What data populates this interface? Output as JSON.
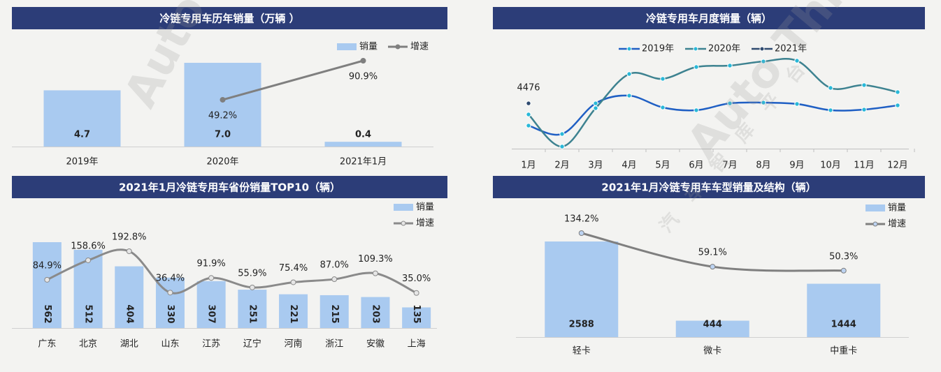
{
  "watermark": [
    "Auto Thinker",
    "汽车智库平台"
  ],
  "chart_data": [
    {
      "type": "combo",
      "title": "冷链专用车历年销量（万辆 ）",
      "categories": [
        "2019年",
        "2020年",
        "2021年1月"
      ],
      "series": [
        {
          "name": "销量",
          "type": "bar",
          "color": "#a9caf0",
          "values": [
            4.7,
            7.0,
            0.4
          ],
          "value_labels": [
            "4.7",
            "7.0",
            "0.4"
          ]
        },
        {
          "name": "增速",
          "type": "line",
          "axis": "y2",
          "color": "#7f7f7f",
          "marker_color": "#7f7f7f",
          "values": [
            null,
            49.2,
            90.9
          ],
          "value_labels": [
            null,
            "49.2%",
            "90.9%"
          ]
        }
      ],
      "legend": "top-right"
    },
    {
      "type": "line",
      "title": "冷链专用车月度销量（辆）",
      "categories": [
        "1月",
        "2月",
        "3月",
        "4月",
        "5月",
        "6月",
        "7月",
        "8月",
        "9月",
        "10月",
        "11月",
        "12月"
      ],
      "series": [
        {
          "name": "2019年",
          "color": "#1f5fc4",
          "values": [
            2280,
            1450,
            4480,
            5240,
            4070,
            3800,
            4480,
            4550,
            4420,
            3800,
            3860,
            4280
          ]
        },
        {
          "name": "2020年",
          "color": "#3d8290",
          "values": [
            3380,
            210,
            4000,
            7380,
            6900,
            8070,
            8210,
            8620,
            8690,
            6000,
            6280,
            5590
          ]
        },
        {
          "name": "2021年",
          "color": "#2f4a6f",
          "values": [
            4476,
            null,
            null,
            null,
            null,
            null,
            null,
            null,
            null,
            null,
            null,
            null
          ],
          "labels": true
        }
      ],
      "marker_color": "#29b8d8",
      "legend": "top"
    },
    {
      "type": "combo",
      "title": "2021年1月冷链专用车省份销量TOP10（辆）",
      "categories": [
        "广东",
        "北京",
        "湖北",
        "山东",
        "江苏",
        "辽宁",
        "河南",
        "浙江",
        "安徽",
        "上海"
      ],
      "series": [
        {
          "name": "销量",
          "type": "bar",
          "color": "#a9caf0",
          "values": [
            562,
            512,
            404,
            330,
            307,
            251,
            221,
            215,
            203,
            135
          ]
        },
        {
          "name": "增速",
          "type": "line",
          "axis": "y2",
          "color": "#8a8a8a",
          "marker_color": "#e6e6e6",
          "smooth": true,
          "values": [
            84.9,
            158.6,
            192.8,
            36.4,
            91.9,
            55.9,
            75.4,
            87.0,
            109.3,
            35.0
          ],
          "value_labels": [
            "84.9%",
            "158.6%",
            "192.8%",
            "36.4%",
            "91.9%",
            "55.9%",
            "75.4%",
            "87.0%",
            "109.3%",
            "35.0%"
          ]
        }
      ],
      "legend": "top-right"
    },
    {
      "type": "combo",
      "title": "2021年1月冷链专用车车型销量及结构（辆）",
      "categories": [
        "轻卡",
        "微卡",
        "中重卡"
      ],
      "series": [
        {
          "name": "销量",
          "type": "bar",
          "color": "#a9caf0",
          "values": [
            2588,
            444,
            1444
          ]
        },
        {
          "name": "增速",
          "type": "line",
          "axis": "y2",
          "color": "#7f7f7f",
          "marker_color": "#bcd3f2",
          "smooth": true,
          "values": [
            134.2,
            59.1,
            50.3
          ],
          "value_labels": [
            "134.2%",
            "59.1%",
            "50.3%"
          ]
        }
      ],
      "legend": "top-right"
    }
  ]
}
